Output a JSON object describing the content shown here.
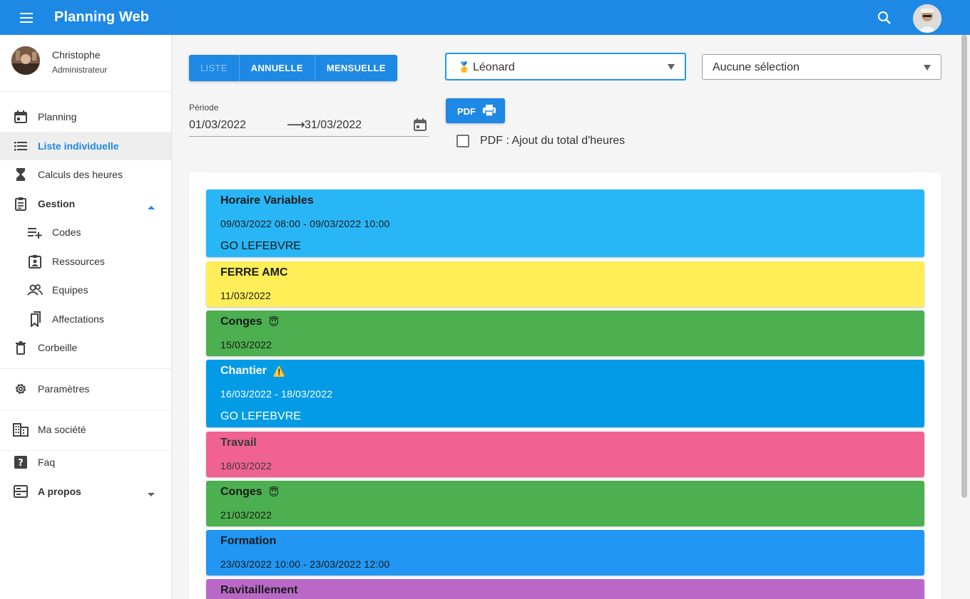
{
  "app": {
    "title": "Planning Web",
    "primary_color": "#1e88e5"
  },
  "user": {
    "name": "Christophe",
    "role": "Administrateur"
  },
  "sidebar": {
    "items": [
      {
        "label": "Planning",
        "icon": "calendar-icon"
      },
      {
        "label": "Liste individuelle",
        "icon": "list-icon",
        "active": true
      },
      {
        "label": "Calculs des heures",
        "icon": "hourglass-icon"
      },
      {
        "label": "Gestion",
        "icon": "clipboard-icon",
        "expanded": true
      },
      {
        "label": "Codes",
        "icon": "playlist-add-icon"
      },
      {
        "label": "Ressources",
        "icon": "badge-icon"
      },
      {
        "label": "Equipes",
        "icon": "people-icon"
      },
      {
        "label": "Affectations",
        "icon": "bookmarks-icon"
      },
      {
        "label": "Corbeille",
        "icon": "trash-icon"
      },
      {
        "label": "Paramètres",
        "icon": "gear-icon"
      },
      {
        "label": "Ma société",
        "icon": "building-icon"
      },
      {
        "label": "Faq",
        "icon": "help-icon"
      },
      {
        "label": "A propos",
        "icon": "info-box-icon",
        "expanded": false
      }
    ]
  },
  "view_toggle": {
    "liste": "LISTE",
    "annuelle": "ANNUELLE",
    "mensuelle": "MENSUELLE",
    "selected": "LISTE"
  },
  "resource_select": {
    "emoji": "🥇",
    "value": "Léonard"
  },
  "team_select": {
    "value": "Aucune sélection"
  },
  "period": {
    "label": "Période",
    "start": "01/03/2022",
    "end": "31/03/2022",
    "arrow": "⟶"
  },
  "pdf": {
    "button_label": "PDF",
    "checkbox_label": "PDF : Ajout du total d'heures",
    "checked": false
  },
  "events": [
    {
      "title": "Horaire Variables",
      "emoji": "",
      "date": "09/03/2022 08:00 - 09/03/2022 10:00",
      "owner": "GO LEFEBVRE",
      "color": "#29b6f6",
      "text_color": "#1a1a1a"
    },
    {
      "title": "FERRE AMC",
      "emoji": "",
      "date": "11/03/2022",
      "owner": "",
      "color": "#ffee58",
      "text_color": "#1a1a1a"
    },
    {
      "title": "Conges",
      "emoji": "😇",
      "date": "15/03/2022",
      "owner": "",
      "color": "#4caf50",
      "text_color": "#1a1a1a"
    },
    {
      "title": "Chantier",
      "emoji": "⚠️",
      "date": "16/03/2022 - 18/03/2022",
      "owner": "GO LEFEBVRE",
      "color": "#039be5",
      "text_color": "#ffffff"
    },
    {
      "title": "Travail",
      "emoji": "",
      "date": "18/03/2022",
      "owner": "",
      "color": "#f06292",
      "text_color": "#3a3a3a"
    },
    {
      "title": "Conges",
      "emoji": "😇",
      "date": "21/03/2022",
      "owner": "",
      "color": "#4caf50",
      "text_color": "#1a1a1a"
    },
    {
      "title": "Formation",
      "emoji": "",
      "date": "23/03/2022 10:00 - 23/03/2022 12:00",
      "owner": "",
      "color": "#2196f3",
      "text_color": "#1a1a1a"
    },
    {
      "title": "Ravitaillement",
      "emoji": "",
      "date": "",
      "owner": "",
      "color": "#ba68c8",
      "text_color": "#1a1a1a"
    }
  ]
}
